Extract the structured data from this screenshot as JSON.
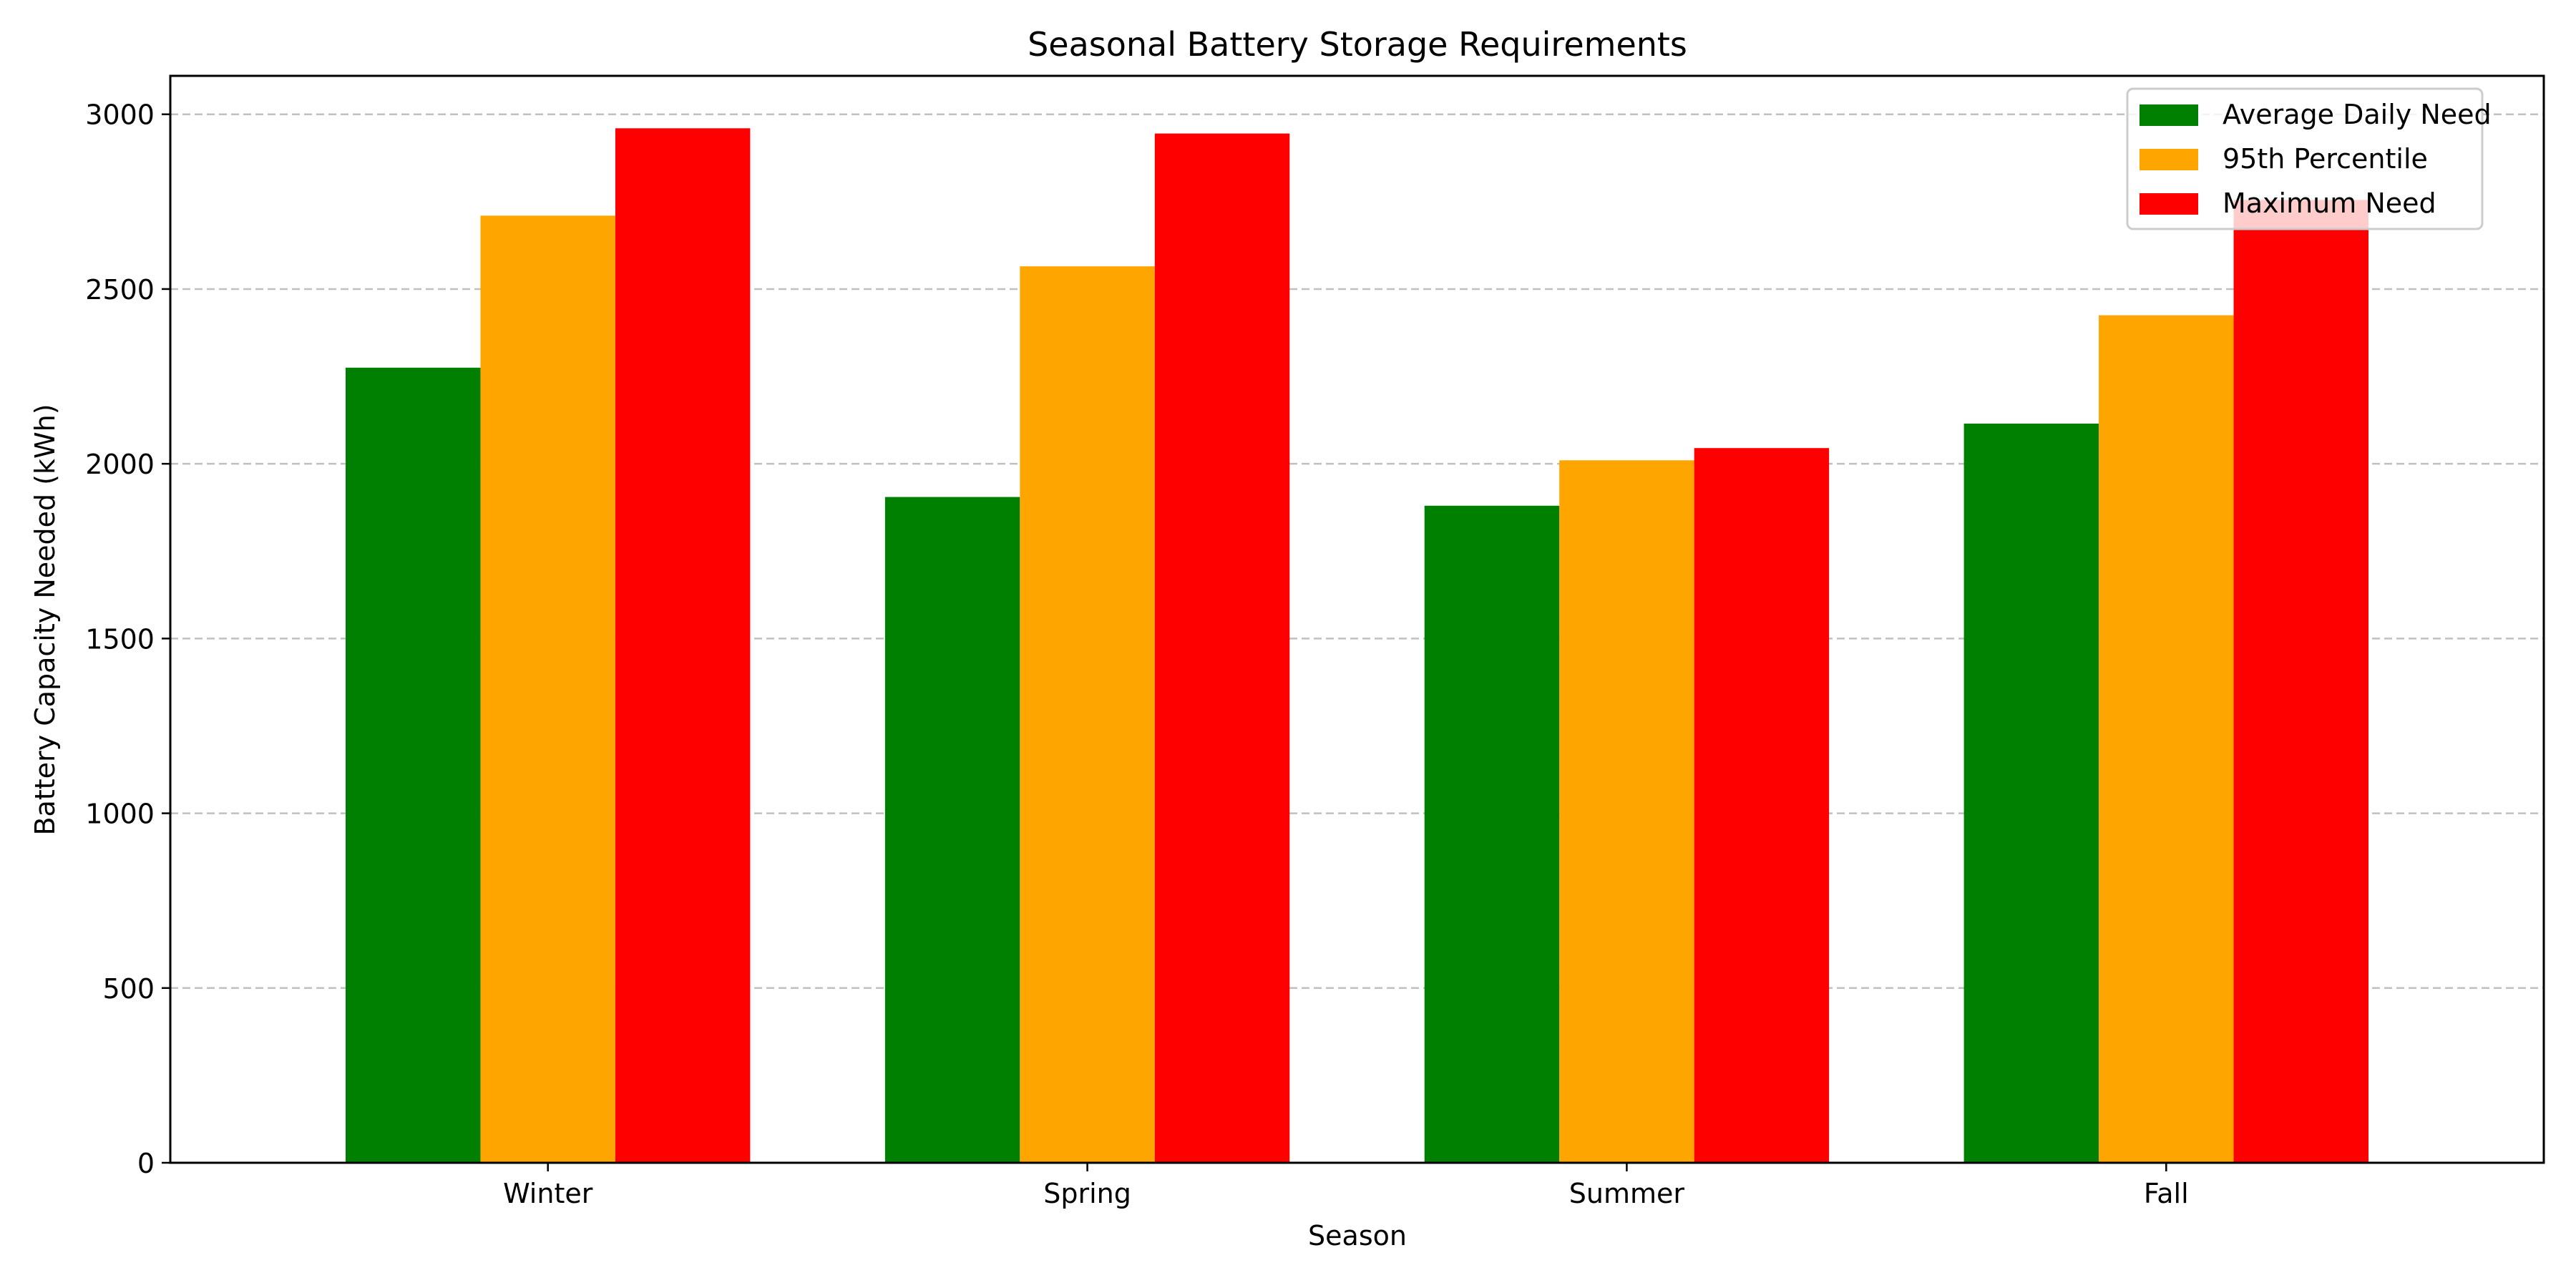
{
  "chart_data": {
    "type": "bar",
    "title": "Seasonal Battery Storage Requirements",
    "xlabel": "Season",
    "ylabel": "Battery Capacity Needed (kWh)",
    "categories": [
      "Winter",
      "Spring",
      "Summer",
      "Fall"
    ],
    "series": [
      {
        "name": "Average Daily Need",
        "color": "#008000",
        "values": [
          2275,
          1905,
          1880,
          2115
        ]
      },
      {
        "name": "95th Percentile",
        "color": "#FFA500",
        "values": [
          2710,
          2565,
          2010,
          2425
        ]
      },
      {
        "name": "Maximum Need",
        "color": "#FF0000",
        "values": [
          2960,
          2945,
          2045,
          2755
        ]
      }
    ],
    "ylim": [
      0,
      3110
    ],
    "yticks": [
      0,
      500,
      1000,
      1500,
      2000,
      2500,
      3000
    ],
    "grid": "y-dashed",
    "legend_position": "top-right"
  }
}
